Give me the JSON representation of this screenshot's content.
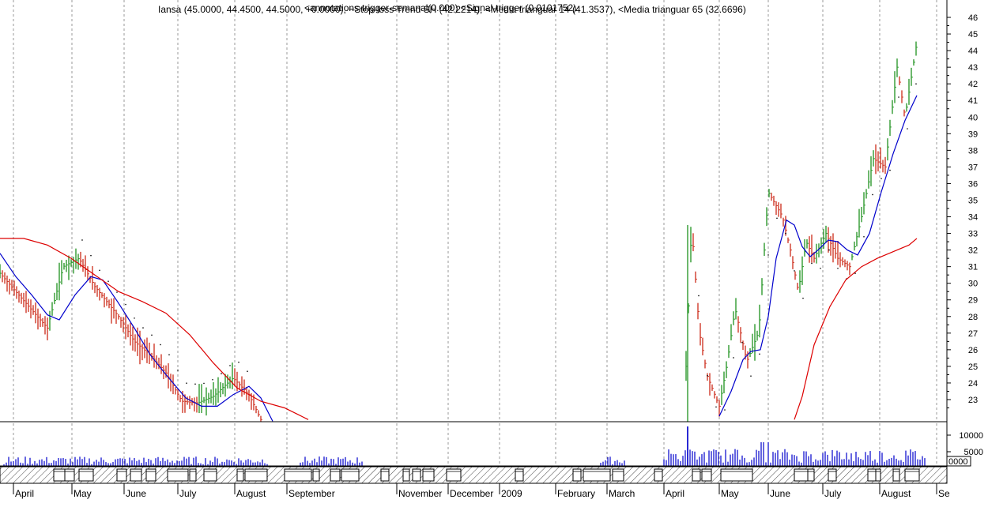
{
  "chart_data": {
    "type": "line",
    "title": "Iansa (45.0000, 44.4500, 44.5000, +0.0000), ~Stop-loss Trend SH (42.2214), <Media trianguar 14 (41.3537), <Media trianguar 65 (32.6696)",
    "header_overlap": "<annotations-trigger-semanal(0.000) <Signal-trigger (0.0101752)",
    "ylim": [
      22,
      46.5
    ],
    "y_ticks": [
      23,
      24,
      25,
      26,
      27,
      28,
      29,
      30,
      31,
      32,
      33,
      34,
      35,
      36,
      37,
      38,
      39,
      40,
      41,
      42,
      43,
      44,
      45,
      46
    ],
    "volume_ticks": [
      "10000",
      "5000"
    ],
    "volume_scale_label": "0000",
    "months": [
      "April",
      "May",
      "June",
      "July",
      "August",
      "September",
      "November",
      "December",
      "2009",
      "February",
      "March",
      "April",
      "May",
      "June",
      "July",
      "August",
      "Se"
    ],
    "series": [
      {
        "name": "Iansa",
        "color": "#000000",
        "points": [
          [
            0,
            30.6
          ],
          [
            40,
            28.4
          ],
          [
            60,
            27.3
          ],
          [
            80,
            31.0
          ],
          [
            100,
            31.5
          ],
          [
            120,
            29.8
          ],
          [
            150,
            28.0
          ],
          [
            170,
            26.5
          ],
          [
            190,
            25.7
          ],
          [
            210,
            24.6
          ],
          [
            230,
            22.9
          ],
          [
            250,
            22.8
          ],
          [
            270,
            23.2
          ],
          [
            295,
            24.3
          ],
          [
            315,
            23.3
          ],
          [
            330,
            21.8
          ],
          [
            868,
            25.0
          ],
          [
            875,
            33.5
          ],
          [
            885,
            27.0
          ],
          [
            895,
            24.4
          ],
          [
            910,
            22.6
          ],
          [
            920,
            25.2
          ],
          [
            930,
            28.5
          ],
          [
            945,
            25.3
          ],
          [
            960,
            27.1
          ],
          [
            972,
            35.5
          ],
          [
            990,
            34.0
          ],
          [
            1000,
            32.0
          ],
          [
            1010,
            29.5
          ],
          [
            1020,
            32.5
          ],
          [
            1030,
            31.5
          ],
          [
            1045,
            33.0
          ],
          [
            1060,
            31.5
          ],
          [
            1075,
            31.0
          ],
          [
            1090,
            34.0
          ],
          [
            1105,
            37.5
          ],
          [
            1120,
            37.0
          ],
          [
            1135,
            43.0
          ],
          [
            1145,
            40.0
          ],
          [
            1160,
            44.5
          ]
        ]
      },
      {
        "name": "Media trianguar 14",
        "color": "#0000cc",
        "points": [
          [
            0,
            31.8
          ],
          [
            20,
            30.4
          ],
          [
            40,
            29.3
          ],
          [
            60,
            28.1
          ],
          [
            75,
            27.8
          ],
          [
            95,
            29.3
          ],
          [
            115,
            30.4
          ],
          [
            130,
            30.2
          ],
          [
            150,
            28.8
          ],
          [
            170,
            27.3
          ],
          [
            190,
            25.7
          ],
          [
            210,
            24.5
          ],
          [
            235,
            23.1
          ],
          [
            255,
            22.6
          ],
          [
            275,
            22.6
          ],
          [
            295,
            23.3
          ],
          [
            315,
            23.8
          ],
          [
            330,
            23.1
          ],
          [
            345,
            21.7
          ],
          [
            910,
            22.0
          ],
          [
            925,
            23.5
          ],
          [
            940,
            25.4
          ],
          [
            950,
            25.9
          ],
          [
            962,
            26.0
          ],
          [
            972,
            28.0
          ],
          [
            982,
            31.5
          ],
          [
            995,
            33.8
          ],
          [
            1005,
            33.5
          ],
          [
            1015,
            32.2
          ],
          [
            1025,
            31.6
          ],
          [
            1035,
            32.0
          ],
          [
            1048,
            32.6
          ],
          [
            1060,
            32.5
          ],
          [
            1072,
            32.0
          ],
          [
            1085,
            31.7
          ],
          [
            1100,
            33.0
          ],
          [
            1115,
            35.5
          ],
          [
            1130,
            37.8
          ],
          [
            1145,
            39.8
          ],
          [
            1160,
            41.3
          ]
        ]
      },
      {
        "name": "Media trianguar 65",
        "color": "#dd0000",
        "points": [
          [
            0,
            32.7
          ],
          [
            30,
            32.7
          ],
          [
            60,
            32.3
          ],
          [
            90,
            31.5
          ],
          [
            120,
            30.5
          ],
          [
            150,
            29.5
          ],
          [
            180,
            28.9
          ],
          [
            210,
            28.2
          ],
          [
            240,
            26.9
          ],
          [
            270,
            25.2
          ],
          [
            300,
            23.7
          ],
          [
            330,
            22.9
          ],
          [
            360,
            22.5
          ],
          [
            390,
            21.8
          ],
          [
            1005,
            21.8
          ],
          [
            1015,
            23.2
          ],
          [
            1030,
            26.3
          ],
          [
            1050,
            28.6
          ],
          [
            1070,
            30.2
          ],
          [
            1090,
            31.0
          ],
          [
            1110,
            31.5
          ],
          [
            1130,
            31.9
          ],
          [
            1150,
            32.3
          ],
          [
            1160,
            32.7
          ]
        ]
      }
    ],
    "legend": "top"
  }
}
